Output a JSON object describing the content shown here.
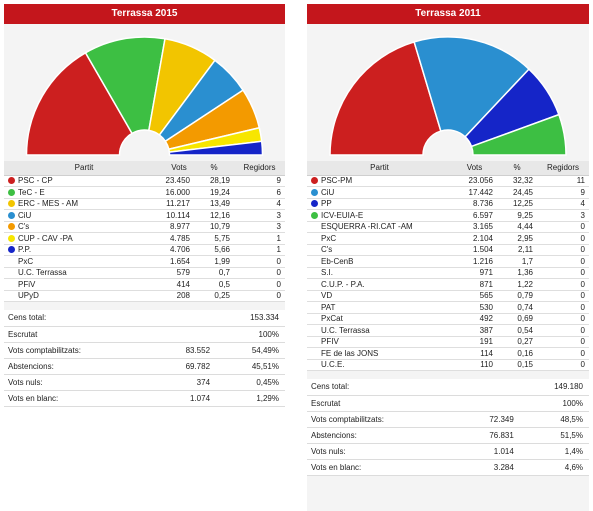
{
  "chart_data": [
    {
      "type": "pie",
      "title": "Terrassa 2015",
      "columns": [
        "Partit",
        "Vots",
        "%",
        "Regidors"
      ],
      "series": [
        {
          "name": "PSC - CP",
          "color": "#cc1f1f",
          "votes": "23.450",
          "pct": "28,19",
          "seats": 9
        },
        {
          "name": "TeC - E",
          "color": "#3dbf43",
          "votes": "16.000",
          "pct": "19,24",
          "seats": 6
        },
        {
          "name": "ERC - MES - AM",
          "color": "#f2c500",
          "votes": "11.217",
          "pct": "13,49",
          "seats": 4
        },
        {
          "name": "CiU",
          "color": "#2a8fd0",
          "votes": "10.114",
          "pct": "12,16",
          "seats": 3
        },
        {
          "name": "C's",
          "color": "#f39a00",
          "votes": "8.977",
          "pct": "10,79",
          "seats": 3
        },
        {
          "name": "CUP - CAV -PA",
          "color": "#f7e600",
          "votes": "4.785",
          "pct": "5,75",
          "seats": 1
        },
        {
          "name": "P.P.",
          "color": "#1525c8",
          "votes": "4.706",
          "pct": "5,66",
          "seats": 1
        },
        {
          "name": "PxC",
          "color": null,
          "votes": "1.654",
          "pct": "1,99",
          "seats": 0
        },
        {
          "name": "U.C. Terrassa",
          "color": null,
          "votes": "579",
          "pct": "0,7",
          "seats": 0
        },
        {
          "name": "PFiV",
          "color": null,
          "votes": "414",
          "pct": "0,5",
          "seats": 0
        },
        {
          "name": "UPyD",
          "color": null,
          "votes": "208",
          "pct": "0,25",
          "seats": 0
        }
      ],
      "census": [
        {
          "label": "Cens total:",
          "value": "",
          "pct": "153.334"
        },
        {
          "label": "Escrutat",
          "value": "",
          "pct": "100%"
        },
        {
          "label": "Vots comptabilitzats:",
          "value": "83.552",
          "pct": "54,49%"
        },
        {
          "label": "Abstencions:",
          "value": "69.782",
          "pct": "45,51%"
        },
        {
          "label": "Vots nuls:",
          "value": "374",
          "pct": "0,45%"
        },
        {
          "label": "Vots en blanc:",
          "value": "1.074",
          "pct": "1,29%"
        }
      ]
    },
    {
      "type": "pie",
      "title": "Terrassa 2011",
      "columns": [
        "Partit",
        "Vots",
        "%",
        "Regidors"
      ],
      "series": [
        {
          "name": "PSC-PM",
          "color": "#cc1f1f",
          "votes": "23.056",
          "pct": "32,32",
          "seats": 11
        },
        {
          "name": "CiU",
          "color": "#2a8fd0",
          "votes": "17.442",
          "pct": "24,45",
          "seats": 9
        },
        {
          "name": "PP",
          "color": "#1525c8",
          "votes": "8.736",
          "pct": "12,25",
          "seats": 4
        },
        {
          "name": "ICV-EUIA-E",
          "color": "#3dbf43",
          "votes": "6.597",
          "pct": "9,25",
          "seats": 3
        },
        {
          "name": "ESQUERRA -RI.CAT -AM",
          "color": null,
          "votes": "3.165",
          "pct": "4,44",
          "seats": 0
        },
        {
          "name": "PxC",
          "color": null,
          "votes": "2.104",
          "pct": "2,95",
          "seats": 0
        },
        {
          "name": "C's",
          "color": null,
          "votes": "1.504",
          "pct": "2,11",
          "seats": 0
        },
        {
          "name": "Eb-CenB",
          "color": null,
          "votes": "1.216",
          "pct": "1,7",
          "seats": 0
        },
        {
          "name": "S.I.",
          "color": null,
          "votes": "971",
          "pct": "1,36",
          "seats": 0
        },
        {
          "name": "C.U.P. - P.A.",
          "color": null,
          "votes": "871",
          "pct": "1,22",
          "seats": 0
        },
        {
          "name": "VD",
          "color": null,
          "votes": "565",
          "pct": "0,79",
          "seats": 0
        },
        {
          "name": "PAT",
          "color": null,
          "votes": "530",
          "pct": "0,74",
          "seats": 0
        },
        {
          "name": "PxCat",
          "color": null,
          "votes": "492",
          "pct": "0,69",
          "seats": 0
        },
        {
          "name": "U.C. Terrassa",
          "color": null,
          "votes": "387",
          "pct": "0,54",
          "seats": 0
        },
        {
          "name": "PFIV",
          "color": null,
          "votes": "191",
          "pct": "0,27",
          "seats": 0
        },
        {
          "name": "FE de las JONS",
          "color": null,
          "votes": "114",
          "pct": "0,16",
          "seats": 0
        },
        {
          "name": "U.C.E.",
          "color": null,
          "votes": "110",
          "pct": "0,15",
          "seats": 0
        }
      ],
      "census": [
        {
          "label": "Cens total:",
          "value": "",
          "pct": "149.180"
        },
        {
          "label": "Escrutat",
          "value": "",
          "pct": "100%"
        },
        {
          "label": "Vots comptabilitzats:",
          "value": "72.349",
          "pct": "48,5%"
        },
        {
          "label": "Abstencions:",
          "value": "76.831",
          "pct": "51,5%"
        },
        {
          "label": "Vots nuls:",
          "value": "1.014",
          "pct": "1,4%"
        },
        {
          "label": "Vots en blanc:",
          "value": "3.284",
          "pct": "4,6%"
        }
      ]
    }
  ]
}
